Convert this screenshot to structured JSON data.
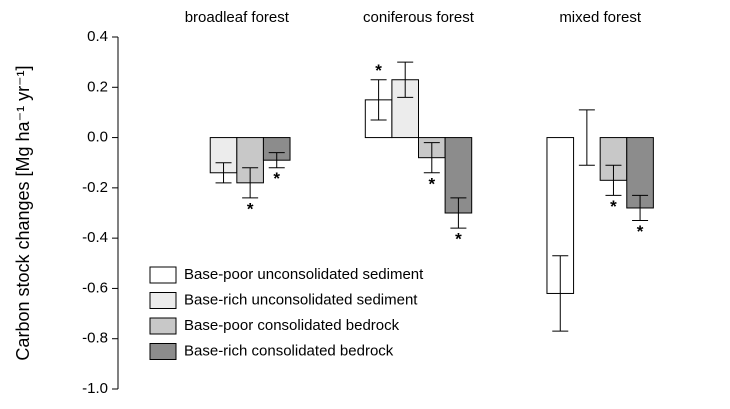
{
  "chart_data": {
    "type": "bar",
    "ylabel": "Carbon stock changes [Mg ha⁻¹ yr⁻¹]",
    "categories": [
      "broadleaf forest",
      "coniferous forest",
      "mixed forest"
    ],
    "series": [
      {
        "name": "Base-poor unconsolidated sediment",
        "color": "#ffffff",
        "values": [
          null,
          0.15,
          -0.62
        ],
        "errors": [
          null,
          0.08,
          0.15
        ],
        "significance": [
          null,
          "*",
          null
        ]
      },
      {
        "name": "Base-rich unconsolidated sediment",
        "color": "#ececec",
        "values": [
          -0.14,
          0.23,
          0
        ],
        "errors": [
          0.04,
          0.07,
          0.11
        ],
        "significance": [
          null,
          null,
          null
        ]
      },
      {
        "name": "Base-poor consolidated bedrock",
        "color": "#c8c8c8",
        "values": [
          -0.18,
          -0.08,
          -0.17
        ],
        "errors": [
          0.06,
          0.06,
          0.06
        ],
        "significance": [
          "*",
          "*",
          "*"
        ]
      },
      {
        "name": "Base-rich consolidated bedrock",
        "color": "#8c8c8c",
        "values": [
          -0.09,
          -0.3,
          -0.28
        ],
        "errors": [
          0.03,
          0.06,
          0.05
        ],
        "significance": [
          "*",
          "*",
          "*"
        ]
      }
    ],
    "ylim": [
      -1,
      0.4
    ],
    "yticks": [
      {
        "value": -1,
        "label": "-1.0"
      },
      -0.8,
      -0.6,
      -0.4,
      -0.2,
      {
        "value": 0,
        "label": "0.0"
      },
      0.2,
      0.4
    ],
    "legend": "lower left",
    "grid": false
  }
}
